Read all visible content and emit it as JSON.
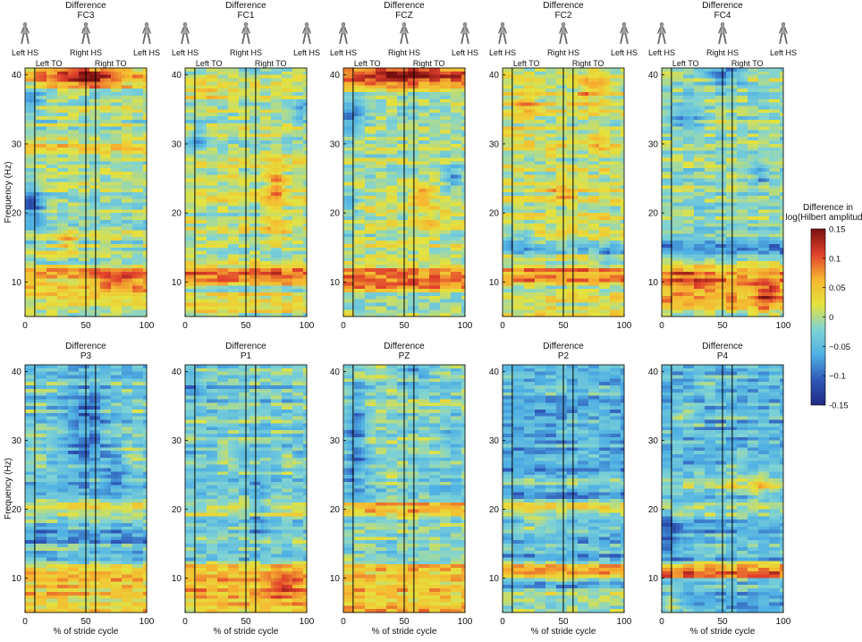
{
  "chart_data": {
    "type": "heatmap",
    "panel_title_prefix": "Difference",
    "x_ticks": [
      0,
      50,
      100
    ],
    "y_ticks": [
      10,
      20,
      30,
      40
    ],
    "xlim": [
      0,
      100
    ],
    "ylim": [
      5,
      41
    ],
    "ylabel": "Frequency (Hz)",
    "xlabel": "% of stride cycle",
    "event_lines_pct": [
      8,
      50,
      58
    ],
    "top_events": {
      "left_hs_start": "Left HS",
      "right_hs": "Right HS",
      "left_hs_end": "Left HS",
      "left_to": "Left TO",
      "right_to": "Right TO"
    },
    "colorbar": {
      "title_line1": "Difference in",
      "title_line2": "log(Hilbert amplitude)",
      "ticks": [
        "0.15",
        "0.1",
        "0.05",
        "0",
        "−0.05",
        "−0.1",
        "-0.15"
      ],
      "min": -0.15,
      "max": 0.15,
      "colors": [
        "#202a84",
        "#2f58b8",
        "#4fb0e4",
        "#7fd3d4",
        "#e5e23d",
        "#f6b530",
        "#e0402c",
        "#7a1010"
      ]
    },
    "panels": [
      {
        "channel": "FC3",
        "bias": -0.005,
        "bands": [
          [
            8,
            12,
            0.06
          ],
          [
            38,
            41,
            0.04
          ],
          [
            29,
            30,
            0.05
          ]
        ],
        "blobs": [
          [
            50,
            40,
            30,
            1.8,
            0.09
          ],
          [
            80,
            10,
            18,
            1.5,
            0.05
          ],
          [
            5,
            21,
            10,
            3.5,
            -0.09
          ],
          [
            5,
            36,
            10,
            2,
            -0.06
          ],
          [
            35,
            16,
            8,
            1.5,
            0.05
          ]
        ]
      },
      {
        "channel": "FC1",
        "bias": 0.005,
        "bands": [
          [
            10,
            12,
            0.08
          ],
          [
            6,
            8,
            0.03
          ]
        ],
        "blobs": [
          [
            75,
            24,
            8,
            4,
            0.06
          ],
          [
            75,
            17,
            8,
            2,
            0.04
          ],
          [
            20,
            38,
            10,
            2,
            0.02
          ],
          [
            95,
            35,
            6,
            2,
            -0.06
          ],
          [
            10,
            31,
            8,
            2,
            -0.05
          ]
        ]
      },
      {
        "channel": "FCZ",
        "bias": 0.0,
        "bands": [
          [
            38,
            41,
            0.08
          ],
          [
            9,
            12,
            0.07
          ]
        ],
        "blobs": [
          [
            50,
            40,
            35,
            1.5,
            0.05
          ],
          [
            65,
            23,
            8,
            1.5,
            0.06
          ],
          [
            70,
            19,
            8,
            1.5,
            0.04
          ],
          [
            5,
            34,
            12,
            3,
            -0.07
          ],
          [
            5,
            21,
            8,
            2,
            -0.06
          ],
          [
            90,
            25,
            8,
            2,
            -0.05
          ]
        ]
      },
      {
        "channel": "FC2",
        "bias": 0.01,
        "bands": [
          [
            10,
            12,
            0.06
          ],
          [
            14,
            16,
            -0.05
          ]
        ],
        "blobs": [
          [
            75,
            38,
            12,
            2.5,
            0.06
          ],
          [
            20,
            36,
            10,
            2,
            0.05
          ],
          [
            50,
            23,
            10,
            1.5,
            0.05
          ],
          [
            80,
            30,
            8,
            2,
            0.03
          ],
          [
            15,
            16,
            10,
            2,
            -0.06
          ],
          [
            90,
            14,
            10,
            2,
            -0.05
          ]
        ]
      },
      {
        "channel": "FC4",
        "bias": -0.01,
        "bands": [
          [
            6,
            12,
            0.08
          ],
          [
            14,
            16,
            -0.05
          ]
        ],
        "blobs": [
          [
            85,
            8,
            10,
            2.5,
            0.06
          ],
          [
            20,
            10,
            15,
            2,
            0.04
          ],
          [
            50,
            40,
            15,
            1.5,
            -0.08
          ],
          [
            20,
            34,
            15,
            2,
            -0.06
          ],
          [
            80,
            26,
            8,
            2,
            -0.05
          ]
        ]
      },
      {
        "channel": "P3",
        "bias": -0.035,
        "bands": [
          [
            5,
            12,
            0.08
          ],
          [
            19,
            21,
            0.05
          ],
          [
            15,
            17,
            -0.05
          ]
        ],
        "blobs": [
          [
            50,
            32,
            18,
            6,
            -0.06
          ],
          [
            75,
            25,
            10,
            3,
            -0.04
          ],
          [
            10,
            29,
            8,
            1.5,
            0.04
          ],
          [
            90,
            28,
            8,
            2,
            0.03
          ]
        ]
      },
      {
        "channel": "P1",
        "bias": -0.03,
        "bands": [
          [
            5,
            12,
            0.08
          ],
          [
            19,
            21,
            0.04
          ]
        ],
        "blobs": [
          [
            80,
            9,
            12,
            2.5,
            0.04
          ],
          [
            35,
            28,
            8,
            2,
            0.03
          ],
          [
            85,
            27,
            6,
            2,
            0.03
          ],
          [
            5,
            38,
            10,
            3,
            -0.05
          ],
          [
            60,
            20,
            8,
            6,
            -0.04
          ]
        ]
      },
      {
        "channel": "PZ",
        "bias": -0.02,
        "bands": [
          [
            5,
            12,
            0.07
          ],
          [
            19,
            21,
            0.06
          ]
        ],
        "blobs": [
          [
            10,
            30,
            10,
            8,
            -0.06
          ],
          [
            60,
            40,
            20,
            1.5,
            -0.05
          ],
          [
            40,
            25,
            15,
            2,
            0.02
          ],
          [
            90,
            30,
            10,
            3,
            -0.03
          ]
        ]
      },
      {
        "channel": "P2",
        "bias": -0.06,
        "bands": [
          [
            10,
            12,
            0.12
          ],
          [
            19,
            21,
            0.08
          ],
          [
            5,
            8,
            0.05
          ],
          [
            23,
            25,
            0.03
          ]
        ],
        "blobs": [
          [
            25,
            18,
            14,
            3,
            0.03
          ],
          [
            70,
            30,
            20,
            5,
            0.02
          ],
          [
            50,
            38,
            30,
            2,
            0.02
          ]
        ]
      },
      {
        "channel": "P4",
        "bias": -0.05,
        "bands": [
          [
            10,
            12,
            0.13
          ],
          [
            19,
            21,
            0.05
          ],
          [
            22,
            24,
            0.03
          ]
        ],
        "blobs": [
          [
            10,
            6,
            8,
            2,
            0.07
          ],
          [
            60,
            25,
            10,
            3,
            0.03
          ],
          [
            80,
            23,
            8,
            2,
            0.05
          ],
          [
            20,
            34,
            10,
            2,
            0.03
          ],
          [
            40,
            38,
            10,
            2,
            0.03
          ],
          [
            5,
            16,
            10,
            4,
            -0.05
          ]
        ]
      }
    ]
  }
}
